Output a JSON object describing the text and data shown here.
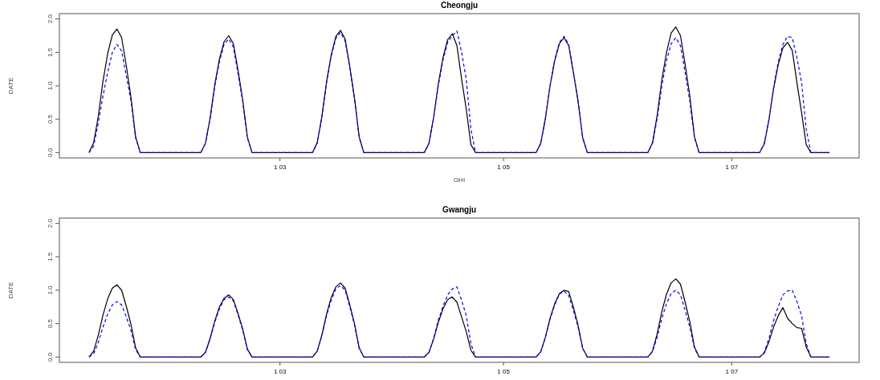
{
  "chart_data": [
    {
      "type": "line",
      "title": "Cheongju",
      "xlabel": "GHI",
      "ylabel": "DATE",
      "categories": [
        null,
        null,
        null,
        null,
        null,
        null,
        null,
        null,
        null,
        null,
        null,
        null,
        null,
        null,
        null,
        null,
        null,
        null,
        null,
        null,
        null,
        null,
        null,
        null,
        null,
        null,
        null,
        null,
        null,
        null,
        null,
        null,
        null,
        null,
        null,
        null,
        null,
        null,
        null,
        null,
        null,
        "1 03",
        null,
        null,
        null,
        null,
        null,
        null,
        null,
        null,
        null,
        null,
        null,
        null,
        null,
        null,
        null,
        null,
        null,
        null,
        null,
        null,
        null,
        null,
        null,
        null,
        null,
        null,
        null,
        null,
        null,
        null,
        null,
        null,
        null,
        null,
        null,
        null,
        null,
        null,
        null,
        null,
        null,
        null,
        null,
        null,
        null,
        null,
        null,
        "1 05",
        null,
        null,
        null,
        null,
        null,
        null,
        null,
        null,
        null,
        null,
        null,
        null,
        null,
        null,
        null,
        null,
        null,
        null,
        null,
        null,
        null,
        null,
        null,
        null,
        null,
        null,
        null,
        null,
        null,
        null,
        null,
        null,
        null,
        null,
        null,
        null,
        null,
        null,
        null,
        null,
        null,
        null,
        null,
        null,
        null,
        null,
        null,
        null,
        "1 07",
        null,
        null,
        null,
        null,
        null,
        null,
        null,
        null,
        null,
        null,
        null,
        null,
        null,
        null,
        null,
        null,
        null,
        null,
        null,
        null,
        null
      ],
      "ylim": [
        -0.08,
        2.08
      ],
      "yticks": [
        {
          "value": 0,
          "label": "0.0"
        },
        {
          "value": 0.5,
          "label": "0.5"
        },
        {
          "value": 1,
          "label": "1.0"
        },
        {
          "value": 1.5,
          "label": "1.5"
        },
        {
          "value": 2,
          "label": "2.0"
        }
      ],
      "series": [
        {
          "color": "#000000",
          "line_style": "solid",
          "values": [
            0,
            0.15,
            0.55,
            1.07,
            1.48,
            1.76,
            1.85,
            1.72,
            1.3,
            0.83,
            0.24,
            0,
            0,
            0,
            0,
            0,
            0,
            0,
            0,
            0,
            0,
            0,
            0,
            0,
            0,
            0.14,
            0.52,
            1.02,
            1.4,
            1.66,
            1.75,
            1.63,
            1.23,
            0.79,
            0.23,
            0,
            0,
            0,
            0,
            0,
            0,
            0,
            0,
            0,
            0,
            0,
            0,
            0,
            0,
            0.15,
            0.54,
            1.06,
            1.46,
            1.74,
            1.83,
            1.7,
            1.28,
            0.82,
            0.24,
            0,
            0,
            0,
            0,
            0,
            0,
            0,
            0,
            0,
            0,
            0,
            0,
            0,
            0,
            0.14,
            0.53,
            1.03,
            1.42,
            1.69,
            1.78,
            1.6,
            1.1,
            0.65,
            0.12,
            0,
            0,
            0,
            0,
            0,
            0,
            0,
            0,
            0,
            0,
            0,
            0,
            0,
            0,
            0.14,
            0.51,
            1.0,
            1.38,
            1.63,
            1.72,
            1.6,
            1.2,
            0.77,
            0.22,
            0,
            0,
            0,
            0,
            0,
            0,
            0,
            0,
            0,
            0,
            0,
            0,
            0,
            0,
            0.15,
            0.56,
            1.09,
            1.5,
            1.79,
            1.88,
            1.75,
            1.32,
            0.85,
            0.24,
            0,
            0,
            0,
            0,
            0,
            0,
            0,
            0,
            0,
            0,
            0,
            0,
            0,
            0,
            0.13,
            0.49,
            0.96,
            1.32,
            1.57,
            1.65,
            1.53,
            1.05,
            0.6,
            0.12,
            0,
            0,
            0,
            0,
            0
          ]
        },
        {
          "color": "#0000ff",
          "line_style": "dashed",
          "values": [
            0,
            0.1,
            0.45,
            0.85,
            1.2,
            1.5,
            1.62,
            1.52,
            1.15,
            0.78,
            0.22,
            0,
            0,
            0,
            0,
            0,
            0,
            0,
            0,
            0,
            0,
            0,
            0,
            0,
            0,
            0.14,
            0.5,
            0.99,
            1.36,
            1.62,
            1.7,
            1.58,
            1.18,
            0.76,
            0.22,
            0,
            0,
            0,
            0,
            0,
            0,
            0,
            0,
            0,
            0,
            0,
            0,
            0,
            0,
            0.14,
            0.53,
            1.04,
            1.44,
            1.71,
            1.8,
            1.67,
            1.26,
            0.81,
            0.23,
            0,
            0,
            0,
            0,
            0,
            0,
            0,
            0,
            0,
            0,
            0,
            0,
            0,
            0,
            0.14,
            0.52,
            1.0,
            1.38,
            1.65,
            1.75,
            1.82,
            1.5,
            1.1,
            0.35,
            0,
            0,
            0,
            0,
            0,
            0,
            0,
            0,
            0,
            0,
            0,
            0,
            0,
            0,
            0.14,
            0.52,
            1.01,
            1.39,
            1.65,
            1.74,
            1.62,
            1.21,
            0.78,
            0.23,
            0,
            0,
            0,
            0,
            0,
            0,
            0,
            0,
            0,
            0,
            0,
            0,
            0,
            0,
            0.14,
            0.51,
            1.0,
            1.38,
            1.63,
            1.72,
            1.6,
            1.2,
            0.77,
            0.22,
            0,
            0,
            0,
            0,
            0,
            0,
            0,
            0,
            0,
            0,
            0,
            0,
            0,
            0,
            0.14,
            0.5,
            0.98,
            1.36,
            1.62,
            1.74,
            1.72,
            1.42,
            1.05,
            0.35,
            0,
            0,
            0,
            0,
            0
          ]
        }
      ]
    },
    {
      "type": "line",
      "title": "Gwangju",
      "ylabel": "DATE",
      "categories": [
        null,
        null,
        null,
        null,
        null,
        null,
        null,
        null,
        null,
        null,
        null,
        null,
        null,
        null,
        null,
        null,
        null,
        null,
        null,
        null,
        null,
        null,
        null,
        null,
        null,
        null,
        null,
        null,
        null,
        null,
        null,
        null,
        null,
        null,
        null,
        null,
        null,
        null,
        null,
        null,
        null,
        "1 03",
        null,
        null,
        null,
        null,
        null,
        null,
        null,
        null,
        null,
        null,
        null,
        null,
        null,
        null,
        null,
        null,
        null,
        null,
        null,
        null,
        null,
        null,
        null,
        null,
        null,
        null,
        null,
        null,
        null,
        null,
        null,
        null,
        null,
        null,
        null,
        null,
        null,
        null,
        null,
        null,
        null,
        null,
        null,
        null,
        null,
        null,
        null,
        "1 05",
        null,
        null,
        null,
        null,
        null,
        null,
        null,
        null,
        null,
        null,
        null,
        null,
        null,
        null,
        null,
        null,
        null,
        null,
        null,
        null,
        null,
        null,
        null,
        null,
        null,
        null,
        null,
        null,
        null,
        null,
        null,
        null,
        null,
        null,
        null,
        null,
        null,
        null,
        null,
        null,
        null,
        null,
        null,
        null,
        null,
        null,
        null,
        null,
        "1 07",
        null,
        null,
        null,
        null,
        null,
        null,
        null,
        null,
        null,
        null,
        null,
        null,
        null,
        null,
        null,
        null,
        null,
        null,
        null,
        null,
        null
      ],
      "ylim": [
        -0.08,
        2.08
      ],
      "yticks": [
        {
          "value": 0,
          "label": "0.0"
        },
        {
          "value": 0.5,
          "label": "0.5"
        },
        {
          "value": 1,
          "label": "1.0"
        },
        {
          "value": 1.5,
          "label": "1.5"
        },
        {
          "value": 2,
          "label": "2.0"
        }
      ],
      "series": [
        {
          "color": "#000000",
          "line_style": "solid",
          "values": [
            0,
            0.09,
            0.33,
            0.63,
            0.87,
            1.03,
            1.08,
            1.0,
            0.76,
            0.49,
            0.14,
            0,
            0,
            0,
            0,
            0,
            0,
            0,
            0,
            0,
            0,
            0,
            0,
            0,
            0,
            0.07,
            0.28,
            0.54,
            0.75,
            0.88,
            0.93,
            0.86,
            0.65,
            0.42,
            0.12,
            0,
            0,
            0,
            0,
            0,
            0,
            0,
            0,
            0,
            0,
            0,
            0,
            0,
            0,
            0.09,
            0.33,
            0.64,
            0.89,
            1.05,
            1.11,
            1.03,
            0.78,
            0.5,
            0.14,
            0,
            0,
            0,
            0,
            0,
            0,
            0,
            0,
            0,
            0,
            0,
            0,
            0,
            0,
            0.07,
            0.27,
            0.52,
            0.72,
            0.86,
            0.9,
            0.82,
            0.6,
            0.38,
            0.1,
            0,
            0,
            0,
            0,
            0,
            0,
            0,
            0,
            0,
            0,
            0,
            0,
            0,
            0,
            0.08,
            0.3,
            0.58,
            0.8,
            0.95,
            1.0,
            0.98,
            0.75,
            0.48,
            0.13,
            0,
            0,
            0,
            0,
            0,
            0,
            0,
            0,
            0,
            0,
            0,
            0,
            0,
            0,
            0.09,
            0.35,
            0.68,
            0.94,
            1.11,
            1.17,
            1.09,
            0.82,
            0.53,
            0.15,
            0,
            0,
            0,
            0,
            0,
            0,
            0,
            0,
            0,
            0,
            0,
            0,
            0,
            0,
            0.06,
            0.23,
            0.45,
            0.62,
            0.74,
            0.58,
            0.5,
            0.44,
            0.43,
            0.15,
            0,
            0,
            0,
            0,
            0
          ]
        },
        {
          "color": "#0000ff",
          "line_style": "dashed",
          "values": [
            0,
            0.05,
            0.22,
            0.45,
            0.64,
            0.78,
            0.83,
            0.78,
            0.6,
            0.4,
            0.11,
            0,
            0,
            0,
            0,
            0,
            0,
            0,
            0,
            0,
            0,
            0,
            0,
            0,
            0,
            0.07,
            0.27,
            0.52,
            0.72,
            0.86,
            0.9,
            0.84,
            0.63,
            0.4,
            0.11,
            0,
            0,
            0,
            0,
            0,
            0,
            0,
            0,
            0,
            0,
            0,
            0,
            0,
            0,
            0.09,
            0.32,
            0.62,
            0.85,
            1.02,
            1.07,
            1.0,
            0.75,
            0.48,
            0.13,
            0,
            0,
            0,
            0,
            0,
            0,
            0,
            0,
            0,
            0,
            0,
            0,
            0,
            0,
            0.07,
            0.28,
            0.55,
            0.76,
            0.93,
            1.02,
            1.05,
            0.85,
            0.62,
            0.2,
            0,
            0,
            0,
            0,
            0,
            0,
            0,
            0,
            0,
            0,
            0,
            0,
            0,
            0,
            0.08,
            0.29,
            0.57,
            0.78,
            0.94,
            0.99,
            0.92,
            0.7,
            0.45,
            0.13,
            0,
            0,
            0,
            0,
            0,
            0,
            0,
            0,
            0,
            0,
            0,
            0,
            0,
            0,
            0.08,
            0.3,
            0.58,
            0.8,
            0.95,
            1.0,
            0.93,
            0.7,
            0.45,
            0.13,
            0,
            0,
            0,
            0,
            0,
            0,
            0,
            0,
            0,
            0,
            0,
            0,
            0,
            0,
            0.07,
            0.28,
            0.55,
            0.76,
            0.93,
            0.99,
            1.0,
            0.83,
            0.62,
            0.2,
            0,
            0,
            0,
            0,
            0
          ]
        }
      ]
    }
  ]
}
